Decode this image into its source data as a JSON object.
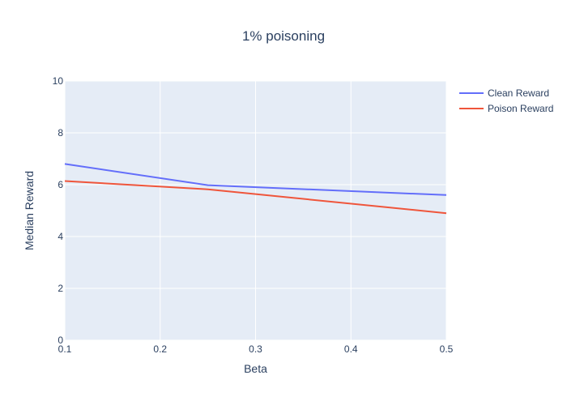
{
  "chart_data": {
    "type": "line",
    "title": "1% poisoning",
    "xlabel": "Beta",
    "ylabel": "Median Reward",
    "xlim": [
      0.1,
      0.5
    ],
    "ylim": [
      0,
      10
    ],
    "x_ticks": [
      "0.1",
      "0.2",
      "0.3",
      "0.4",
      "0.5"
    ],
    "y_ticks": [
      "0",
      "2",
      "4",
      "6",
      "8",
      "10"
    ],
    "grid": true,
    "legend_position": "top-right",
    "series": [
      {
        "name": "Clean Reward",
        "color": "#636efa",
        "x": [
          0.1,
          0.25,
          0.5
        ],
        "y": [
          6.8,
          5.98,
          5.6
        ]
      },
      {
        "name": "Poison Reward",
        "color": "#ef553b",
        "x": [
          0.1,
          0.25,
          0.5
        ],
        "y": [
          6.14,
          5.82,
          4.9
        ]
      }
    ],
    "colors": {
      "plot_background": "#e5ecf6",
      "grid": "#ffffff",
      "text": "#2a3f5f"
    }
  }
}
